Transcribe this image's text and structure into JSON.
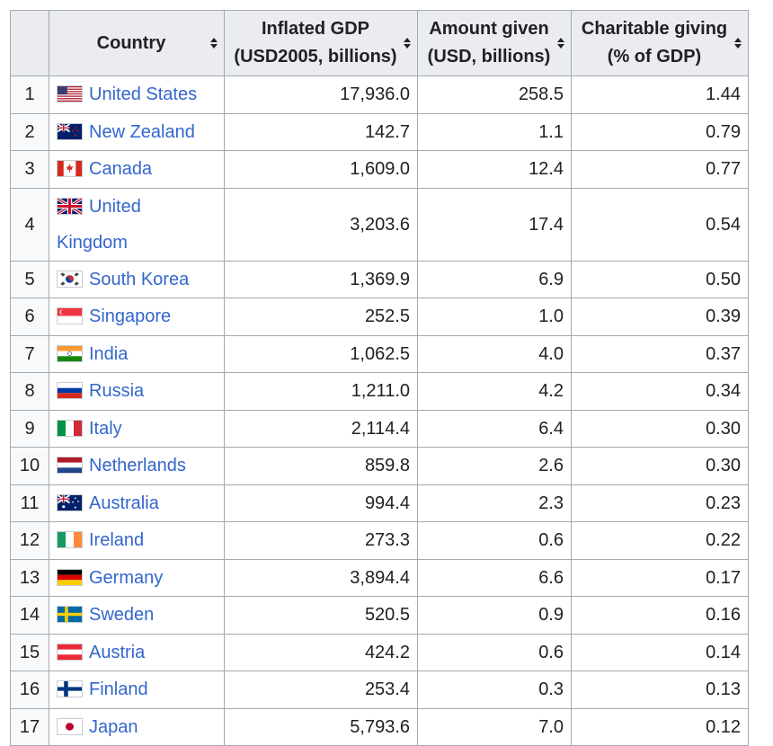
{
  "table": {
    "headers": {
      "country": "Country",
      "gdp_line1": "Inflated GDP",
      "gdp_line2": "(USD2005, billions)",
      "given_line1": "Amount given",
      "given_line2": "(USD, billions)",
      "pct_line1": "Charitable giving",
      "pct_line2": "(% of GDP)"
    },
    "rows": [
      {
        "rank": "1",
        "country": "United States",
        "flag": "us-flag-icon",
        "gdp": "17,936.0",
        "given": "258.5",
        "pct": "1.44"
      },
      {
        "rank": "2",
        "country": "New Zealand",
        "flag": "new-zealand-flag-icon",
        "gdp": "142.7",
        "given": "1.1",
        "pct": "0.79"
      },
      {
        "rank": "3",
        "country": "Canada",
        "flag": "canada-flag-icon",
        "gdp": "1,609.0",
        "given": "12.4",
        "pct": "0.77"
      },
      {
        "rank": "4",
        "country": "United Kingdom",
        "flag": "uk-flag-icon",
        "gdp": "3,203.6",
        "given": "17.4",
        "pct": "0.54"
      },
      {
        "rank": "5",
        "country": "South Korea",
        "flag": "south-korea-flag-icon",
        "gdp": "1,369.9",
        "given": "6.9",
        "pct": "0.50"
      },
      {
        "rank": "6",
        "country": "Singapore",
        "flag": "singapore-flag-icon",
        "gdp": "252.5",
        "given": "1.0",
        "pct": "0.39"
      },
      {
        "rank": "7",
        "country": "India",
        "flag": "india-flag-icon",
        "gdp": "1,062.5",
        "given": "4.0",
        "pct": "0.37"
      },
      {
        "rank": "8",
        "country": "Russia",
        "flag": "russia-flag-icon",
        "gdp": "1,211.0",
        "given": "4.2",
        "pct": "0.34"
      },
      {
        "rank": "9",
        "country": "Italy",
        "flag": "italy-flag-icon",
        "gdp": "2,114.4",
        "given": "6.4",
        "pct": "0.30"
      },
      {
        "rank": "10",
        "country": "Netherlands",
        "flag": "netherlands-flag-icon",
        "gdp": "859.8",
        "given": "2.6",
        "pct": "0.30"
      },
      {
        "rank": "11",
        "country": "Australia",
        "flag": "australia-flag-icon",
        "gdp": "994.4",
        "given": "2.3",
        "pct": "0.23"
      },
      {
        "rank": "12",
        "country": "Ireland",
        "flag": "ireland-flag-icon",
        "gdp": "273.3",
        "given": "0.6",
        "pct": "0.22"
      },
      {
        "rank": "13",
        "country": "Germany",
        "flag": "germany-flag-icon",
        "gdp": "3,894.4",
        "given": "6.6",
        "pct": "0.17"
      },
      {
        "rank": "14",
        "country": "Sweden",
        "flag": "sweden-flag-icon",
        "gdp": "520.5",
        "given": "0.9",
        "pct": "0.16"
      },
      {
        "rank": "15",
        "country": "Austria",
        "flag": "austria-flag-icon",
        "gdp": "424.2",
        "given": "0.6",
        "pct": "0.14"
      },
      {
        "rank": "16",
        "country": "Finland",
        "flag": "finland-flag-icon",
        "gdp": "253.4",
        "given": "0.3",
        "pct": "0.13"
      },
      {
        "rank": "17",
        "country": "Japan",
        "flag": "japan-flag-icon",
        "gdp": "5,793.6",
        "given": "7.0",
        "pct": "0.12"
      }
    ]
  },
  "colors": {
    "link": "#3366cc",
    "header_bg": "#eaecf0",
    "border": "#a2a9b1"
  }
}
